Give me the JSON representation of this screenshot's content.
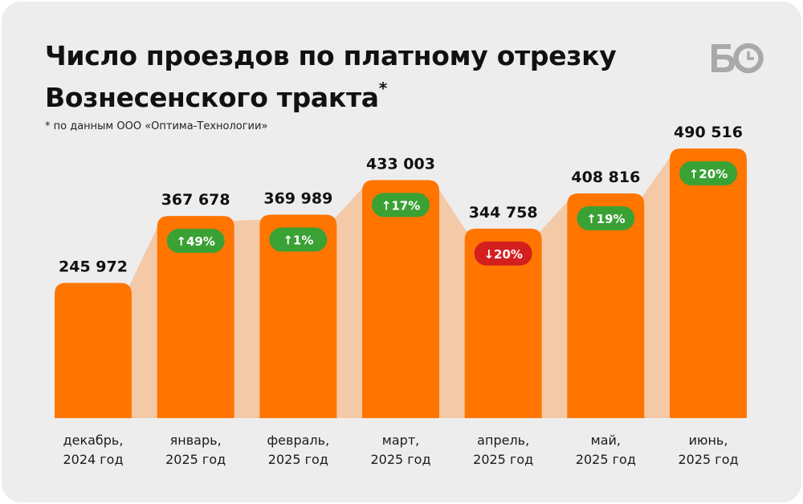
{
  "title_line1": "Число проездов по платному отрезку",
  "title_line2": "Вознесенского тракта",
  "title_mark": "*",
  "footnote": "* по данным ООО «Оптима-Технологии»",
  "logo_text": "БО",
  "colors": {
    "bar": "#ff7500",
    "connector": "#f4c9a8",
    "badge_up": "#3aa135",
    "badge_down": "#d41f1f",
    "background": "#ededed"
  },
  "chart_data": {
    "type": "bar",
    "title": "Число проездов по платному отрезку Вознесенского тракта",
    "categories": [
      [
        "декабрь,",
        "2024 год"
      ],
      [
        "январь,",
        "2025 год"
      ],
      [
        "февраль,",
        "2025 год"
      ],
      [
        "март,",
        "2025 год"
      ],
      [
        "апрель,",
        "2025 год"
      ],
      [
        "май,",
        "2025 год"
      ],
      [
        "июнь,",
        "2025 год"
      ]
    ],
    "values": [
      245972,
      367678,
      369989,
      433003,
      344758,
      408816,
      490516
    ],
    "value_labels": [
      "245 972",
      "367 678",
      "369 989",
      "433 003",
      "344 758",
      "408 816",
      "490 516"
    ],
    "changes": [
      null,
      "↑49%",
      "↑1%",
      "↑17%",
      "↓20%",
      "↑19%",
      "↑20%"
    ],
    "change_direction": [
      null,
      "up",
      "up",
      "up",
      "down",
      "up",
      "up"
    ],
    "ylim": [
      0,
      490516
    ],
    "grid": false,
    "legend": "none"
  }
}
